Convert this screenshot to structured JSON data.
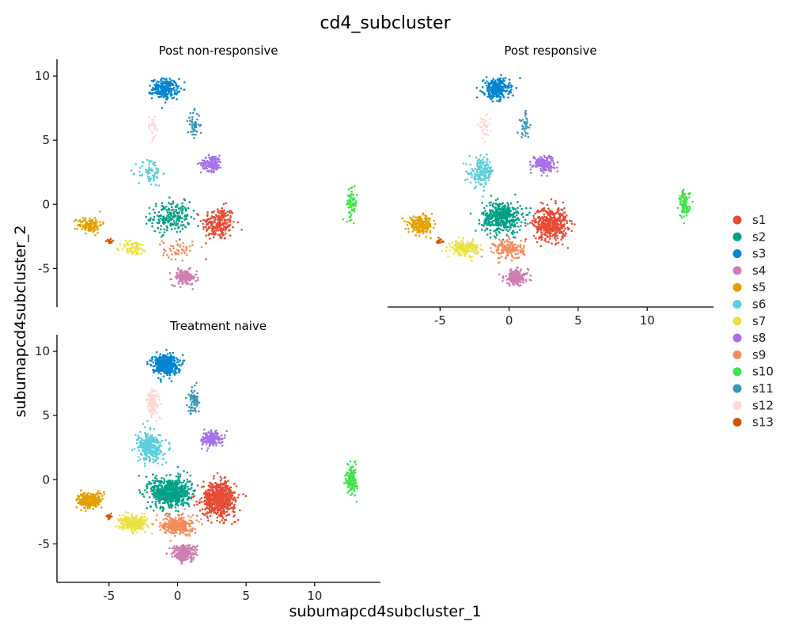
{
  "chart_data": {
    "type": "scatter",
    "title": "cd4_subcluster",
    "xlabel": "subumapcd4subcluster_1",
    "ylabel": "subumapcd4subcluster_2",
    "xlim": [
      -8.8,
      14.8
    ],
    "ylim": [
      -8.0,
      11.3
    ],
    "x_ticks": [
      -5,
      0,
      5,
      10
    ],
    "y_ticks": [
      -5,
      0,
      5,
      10
    ],
    "grid": false,
    "legend_position": "right",
    "facets": [
      {
        "title": "Post non-responsive"
      },
      {
        "title": "Post responsive"
      },
      {
        "title": "Treatment naive"
      }
    ],
    "clusters": [
      {
        "name": "s1",
        "color": "#E64B35",
        "center": [
          3.0,
          -1.5
        ],
        "spread": [
          1.1,
          1.2
        ],
        "weights": [
          0.1,
          0.14,
          0.16
        ]
      },
      {
        "name": "s2",
        "color": "#00A087",
        "center": [
          -0.5,
          -1.0
        ],
        "spread": [
          1.3,
          1.1
        ],
        "weights": [
          0.09,
          0.14,
          0.16
        ]
      },
      {
        "name": "s3",
        "color": "#0385D0",
        "center": [
          -0.9,
          9.0
        ],
        "spread": [
          0.85,
          0.7
        ],
        "weights": [
          0.1,
          0.09,
          0.1
        ]
      },
      {
        "name": "s4",
        "color": "#CF7DB3",
        "center": [
          0.5,
          -5.7
        ],
        "spread": [
          0.8,
          0.55
        ],
        "weights": [
          0.06,
          0.06,
          0.06
        ]
      },
      {
        "name": "s5",
        "color": "#E5A000",
        "center": [
          -6.4,
          -1.6
        ],
        "spread": [
          0.8,
          0.55
        ],
        "weights": [
          0.05,
          0.07,
          0.07
        ]
      },
      {
        "name": "s6",
        "color": "#5CCDDA",
        "center": [
          -2.0,
          2.5
        ],
        "spread": [
          0.8,
          1.0
        ],
        "weights": [
          0.03,
          0.05,
          0.08
        ]
      },
      {
        "name": "s7",
        "color": "#EBE241",
        "center": [
          -3.2,
          -3.4
        ],
        "spread": [
          0.9,
          0.5
        ],
        "weights": [
          0.03,
          0.06,
          0.07
        ]
      },
      {
        "name": "s8",
        "color": "#A670E8",
        "center": [
          2.5,
          3.2
        ],
        "spread": [
          0.7,
          0.55
        ],
        "weights": [
          0.06,
          0.05,
          0.04
        ]
      },
      {
        "name": "s9",
        "color": "#F58B5A",
        "center": [
          0.0,
          -3.5
        ],
        "spread": [
          1.0,
          0.7
        ],
        "weights": [
          0.02,
          0.05,
          0.07
        ]
      },
      {
        "name": "s10",
        "color": "#3FE54A",
        "center": [
          12.7,
          0.0
        ],
        "spread": [
          0.35,
          1.0
        ],
        "weights": [
          0.03,
          0.03,
          0.04
        ]
      },
      {
        "name": "s11",
        "color": "#3A96B5",
        "center": [
          1.2,
          6.2
        ],
        "spread": [
          0.4,
          0.9
        ],
        "weights": [
          0.02,
          0.01,
          0.02
        ]
      },
      {
        "name": "s12",
        "color": "#FFD7D5",
        "center": [
          -1.8,
          6.0
        ],
        "spread": [
          0.4,
          0.9
        ],
        "weights": [
          0.01,
          0.01,
          0.03
        ]
      },
      {
        "name": "s13",
        "color": "#D45500",
        "center": [
          -5.0,
          -2.9
        ],
        "spread": [
          0.3,
          0.2
        ],
        "weights": [
          0.003,
          0.003,
          0.004
        ]
      }
    ]
  }
}
